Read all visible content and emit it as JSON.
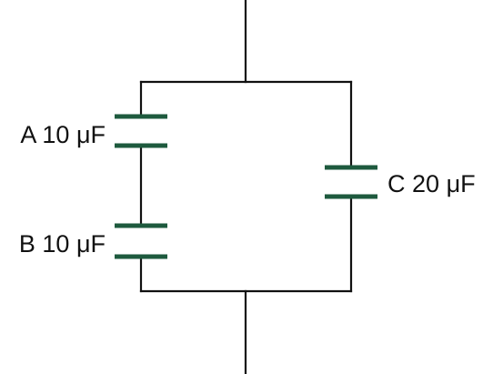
{
  "capacitors": {
    "a": {
      "letter": "A",
      "value": "10",
      "unit": "μF"
    },
    "b": {
      "letter": "B",
      "value": "10",
      "unit": "μF"
    },
    "c": {
      "letter": "C",
      "value": "20",
      "unit": "μF"
    }
  },
  "colors": {
    "wire": "#111111",
    "plate": "#1e5a3e",
    "background": "#ffffff"
  }
}
